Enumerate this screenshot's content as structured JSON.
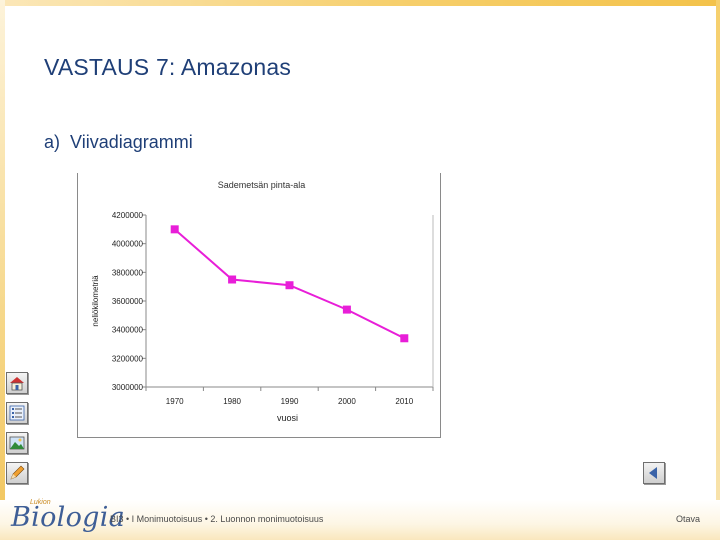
{
  "slide": {
    "title": "VASTAUS 7: Amazonas",
    "item_label": "a)",
    "item_text": "Viivadiagrammi"
  },
  "chart_data": {
    "type": "line",
    "title": "Sademetsän pinta-ala",
    "xlabel": "vuosi",
    "ylabel": "neliökilometriä",
    "categories": [
      "1970",
      "1980",
      "1990",
      "2000",
      "2010"
    ],
    "series": [
      {
        "values": [
          4100000,
          3750000,
          3710000,
          3540000,
          3340000
        ]
      }
    ],
    "ylim": [
      3000000,
      4200000
    ],
    "yticks": [
      "4200000",
      "4000000",
      "3800000",
      "3600000",
      "3400000",
      "3200000",
      "3000000"
    ],
    "grid": false,
    "legend": "none",
    "line_color": "#e81ed8"
  },
  "footer": {
    "logo_small": "Lukion",
    "logo": "Biologia",
    "course": "BI3 • I Monimuotoisuus • 2. Luonnon monimuotoisuus",
    "publisher": "Otava"
  },
  "icons": {
    "side": [
      "home-icon",
      "list-icon",
      "image-icon",
      "pencil-icon"
    ],
    "nav": "back-arrow-icon"
  }
}
